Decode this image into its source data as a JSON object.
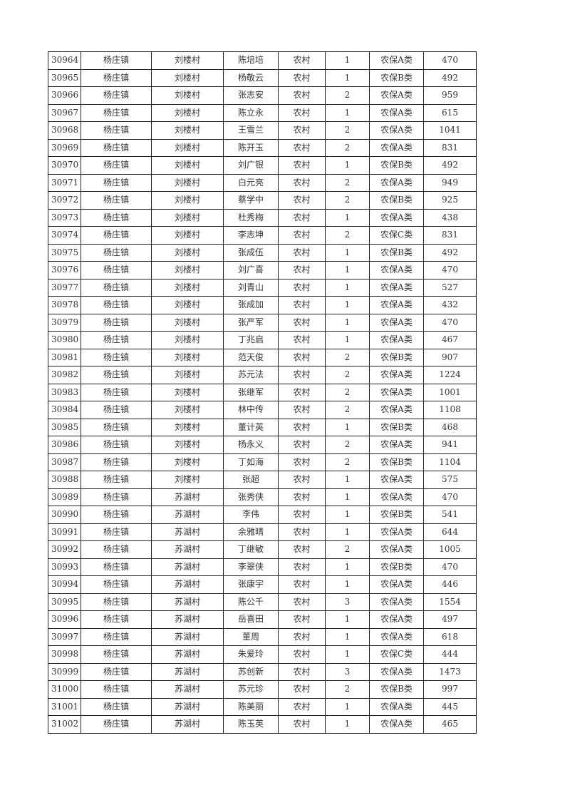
{
  "table": {
    "rows": [
      [
        "30964",
        "杨庄镇",
        "刘楼村",
        "陈培培",
        "农村",
        "1",
        "农保A类",
        "470"
      ],
      [
        "30965",
        "杨庄镇",
        "刘楼村",
        "杨敬云",
        "农村",
        "1",
        "农保B类",
        "492"
      ],
      [
        "30966",
        "杨庄镇",
        "刘楼村",
        "张志安",
        "农村",
        "2",
        "农保A类",
        "959"
      ],
      [
        "30967",
        "杨庄镇",
        "刘楼村",
        "陈立永",
        "农村",
        "1",
        "农保A类",
        "615"
      ],
      [
        "30968",
        "杨庄镇",
        "刘楼村",
        "王雪兰",
        "农村",
        "2",
        "农保A类",
        "1041"
      ],
      [
        "30969",
        "杨庄镇",
        "刘楼村",
        "陈开玉",
        "农村",
        "2",
        "农保A类",
        "831"
      ],
      [
        "30970",
        "杨庄镇",
        "刘楼村",
        "刘广银",
        "农村",
        "1",
        "农保B类",
        "492"
      ],
      [
        "30971",
        "杨庄镇",
        "刘楼村",
        "白元亮",
        "农村",
        "2",
        "农保A类",
        "949"
      ],
      [
        "30972",
        "杨庄镇",
        "刘楼村",
        "蔡学中",
        "农村",
        "2",
        "农保B类",
        "925"
      ],
      [
        "30973",
        "杨庄镇",
        "刘楼村",
        "杜秀梅",
        "农村",
        "1",
        "农保A类",
        "438"
      ],
      [
        "30974",
        "杨庄镇",
        "刘楼村",
        "李志坤",
        "农村",
        "2",
        "农保C类",
        "831"
      ],
      [
        "30975",
        "杨庄镇",
        "刘楼村",
        "张成伍",
        "农村",
        "1",
        "农保B类",
        "492"
      ],
      [
        "30976",
        "杨庄镇",
        "刘楼村",
        "刘广喜",
        "农村",
        "1",
        "农保A类",
        "470"
      ],
      [
        "30977",
        "杨庄镇",
        "刘楼村",
        "刘青山",
        "农村",
        "1",
        "农保A类",
        "527"
      ],
      [
        "30978",
        "杨庄镇",
        "刘楼村",
        "张成加",
        "农村",
        "1",
        "农保A类",
        "432"
      ],
      [
        "30979",
        "杨庄镇",
        "刘楼村",
        "张严军",
        "农村",
        "1",
        "农保A类",
        "470"
      ],
      [
        "30980",
        "杨庄镇",
        "刘楼村",
        "丁兆启",
        "农村",
        "1",
        "农保A类",
        "467"
      ],
      [
        "30981",
        "杨庄镇",
        "刘楼村",
        "范天俊",
        "农村",
        "2",
        "农保B类",
        "907"
      ],
      [
        "30982",
        "杨庄镇",
        "刘楼村",
        "苏元法",
        "农村",
        "2",
        "农保A类",
        "1224"
      ],
      [
        "30983",
        "杨庄镇",
        "刘楼村",
        "张继军",
        "农村",
        "2",
        "农保A类",
        "1001"
      ],
      [
        "30984",
        "杨庄镇",
        "刘楼村",
        "林中传",
        "农村",
        "2",
        "农保A类",
        "1108"
      ],
      [
        "30985",
        "杨庄镇",
        "刘楼村",
        "董计英",
        "农村",
        "1",
        "农保B类",
        "468"
      ],
      [
        "30986",
        "杨庄镇",
        "刘楼村",
        "杨永义",
        "农村",
        "2",
        "农保A类",
        "941"
      ],
      [
        "30987",
        "杨庄镇",
        "刘楼村",
        "丁如海",
        "农村",
        "2",
        "农保B类",
        "1104"
      ],
      [
        "30988",
        "杨庄镇",
        "刘楼村",
        "张超",
        "农村",
        "1",
        "农保A类",
        "575"
      ],
      [
        "30989",
        "杨庄镇",
        "苏湖村",
        "张秀侠",
        "农村",
        "1",
        "农保A类",
        "470"
      ],
      [
        "30990",
        "杨庄镇",
        "苏湖村",
        "李伟",
        "农村",
        "1",
        "农保B类",
        "541"
      ],
      [
        "30991",
        "杨庄镇",
        "苏湖村",
        "余雅晴",
        "农村",
        "1",
        "农保A类",
        "644"
      ],
      [
        "30992",
        "杨庄镇",
        "苏湖村",
        "丁继敏",
        "农村",
        "2",
        "农保A类",
        "1005"
      ],
      [
        "30993",
        "杨庄镇",
        "苏湖村",
        "李翠侠",
        "农村",
        "1",
        "农保B类",
        "470"
      ],
      [
        "30994",
        "杨庄镇",
        "苏湖村",
        "张康宇",
        "农村",
        "1",
        "农保A类",
        "446"
      ],
      [
        "30995",
        "杨庄镇",
        "苏湖村",
        "陈公千",
        "农村",
        "3",
        "农保A类",
        "1554"
      ],
      [
        "30996",
        "杨庄镇",
        "苏湖村",
        "岳喜田",
        "农村",
        "1",
        "农保A类",
        "497"
      ],
      [
        "30997",
        "杨庄镇",
        "苏湖村",
        "董周",
        "农村",
        "1",
        "农保A类",
        "618"
      ],
      [
        "30998",
        "杨庄镇",
        "苏湖村",
        "朱爱玲",
        "农村",
        "1",
        "农保C类",
        "444"
      ],
      [
        "30999",
        "杨庄镇",
        "苏湖村",
        "苏创新",
        "农村",
        "3",
        "农保A类",
        "1473"
      ],
      [
        "31000",
        "杨庄镇",
        "苏湖村",
        "苏元珍",
        "农村",
        "2",
        "农保B类",
        "997"
      ],
      [
        "31001",
        "杨庄镇",
        "苏湖村",
        "陈美丽",
        "农村",
        "1",
        "农保A类",
        "445"
      ],
      [
        "31002",
        "杨庄镇",
        "苏湖村",
        "陈玉英",
        "农村",
        "1",
        "农保A类",
        "465"
      ]
    ]
  }
}
